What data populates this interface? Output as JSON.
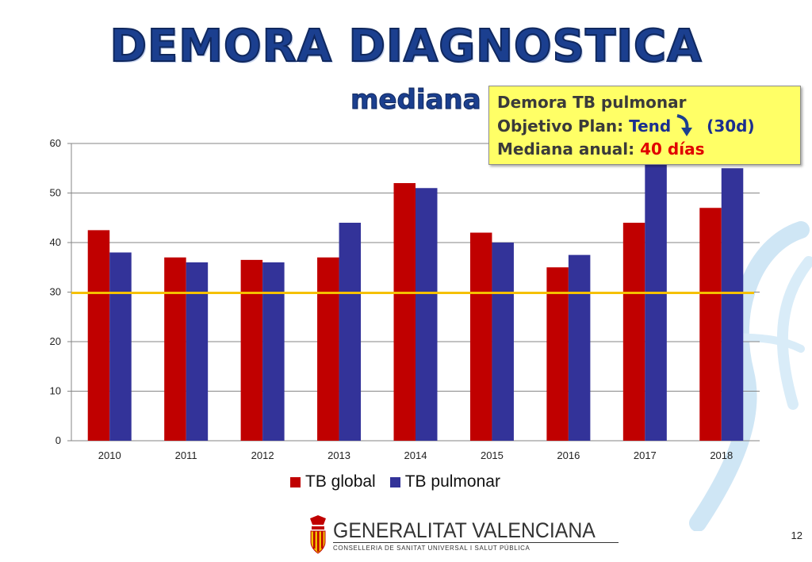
{
  "slide": {
    "title": "DEMORA DIAGNOSTICA",
    "subtitle": "mediana",
    "page_number": "12"
  },
  "callout": {
    "line1": "Demora TB pulmonar",
    "line2_prefix": "Objetivo Plan: ",
    "line2_tend": "Tend",
    "line2_suffix": " (30d)",
    "line3_prefix": "Mediana anual: ",
    "line3_value": "40 días",
    "arrow_icon": "down-arrow-icon"
  },
  "footer": {
    "logo_name": "GENERALITAT VALENCIANA",
    "logo_sub": "CONSELLERIA DE SANITAT UNIVERSAL I SALUT PÚBLICA"
  },
  "chart_data": {
    "type": "bar",
    "categories": [
      "2010",
      "2011",
      "2012",
      "2013",
      "2014",
      "2015",
      "2016",
      "2017",
      "2018"
    ],
    "series": [
      {
        "name": "TB global",
        "color": "#c00000",
        "values": [
          42.5,
          37,
          36.5,
          37,
          52,
          42,
          35,
          44,
          47
        ]
      },
      {
        "name": "TB pulmonar",
        "color": "#333399",
        "values": [
          38,
          36,
          36,
          44,
          51,
          40,
          37.5,
          57,
          55
        ]
      }
    ],
    "yticks": [
      "0",
      "10",
      "20",
      "30",
      "40",
      "50",
      "60"
    ],
    "ylim": [
      0,
      60
    ],
    "reference_line": {
      "value": 30,
      "color": "#f5c000"
    },
    "grid": true,
    "legend_position": "bottom"
  }
}
